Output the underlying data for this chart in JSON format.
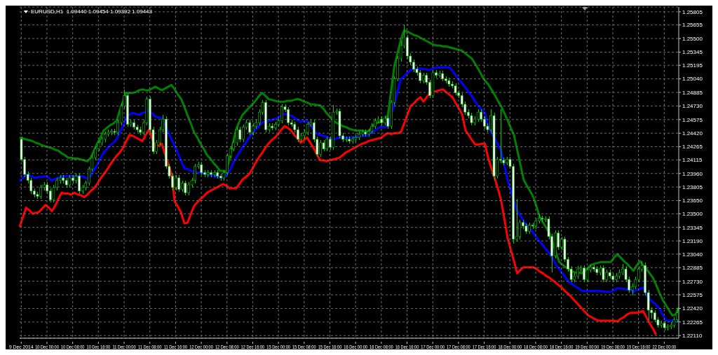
{
  "chart_data": {
    "type": "candlestick",
    "title": "EURUSD,H1  1.09440 1.09454 1.09392 1.09443",
    "color": "#00cc00",
    "categories": [
      "9 Dec 2014",
      null,
      null,
      null,
      null,
      null,
      null,
      null,
      "10 Dec 00:00",
      null,
      null,
      null,
      null,
      null,
      null,
      null,
      "10 Dec 08:00",
      null,
      null,
      null,
      null,
      null,
      null,
      null,
      "10 Dec 16:00",
      null,
      null,
      null,
      null,
      null,
      null,
      null,
      "11 Dec 00:00",
      null,
      null,
      null,
      null,
      null,
      null,
      null,
      "11 Dec 08:00",
      null,
      null,
      null,
      null,
      null,
      null,
      null,
      "11 Dec 16:00",
      null,
      null,
      null,
      null,
      null,
      null,
      null,
      "12 Dec 00:00",
      null,
      null,
      null,
      null,
      null,
      null,
      null,
      "12 Dec 08:00",
      null,
      null,
      null,
      null,
      null,
      null,
      null,
      "12 Dec 16:00",
      null,
      null,
      null,
      null,
      null,
      null,
      null,
      "15 Dec 00:00",
      null,
      null,
      null,
      null,
      null,
      null,
      null,
      "15 Dec 08:00",
      null,
      null,
      null,
      null,
      null,
      null,
      null,
      "15 Dec 16:00",
      null,
      null,
      null,
      null,
      null,
      null,
      null,
      "16 Dec 00:00",
      null,
      null,
      null,
      null,
      null,
      null,
      null,
      "16 Dec 08:00",
      null,
      null,
      null,
      null,
      null,
      null,
      null,
      "16 Dec 16:00",
      null,
      null,
      null,
      null,
      null,
      null,
      null,
      "17 Dec 00:00",
      null,
      null,
      null,
      null,
      null,
      null,
      null,
      "17 Dec 08:00",
      null,
      null,
      null,
      null,
      null,
      null,
      null,
      "17 Dec 16:00",
      null,
      null,
      null,
      null,
      null,
      null,
      null,
      "18 Dec 00:00",
      null,
      null,
      null,
      null,
      null,
      null,
      null,
      "18 Dec 08:00",
      null,
      null,
      null,
      null,
      null,
      null,
      null,
      "18 Dec 16:00",
      null,
      null,
      null,
      null,
      null,
      null,
      null,
      "19 Dec 00:00",
      null,
      null,
      null,
      null,
      null,
      null,
      null,
      "19 Dec 08:00",
      null,
      null,
      null,
      null,
      null,
      null,
      null,
      "19 Dec 16:00",
      null,
      null,
      null,
      null,
      null,
      null,
      null,
      "22 Dec 00:00",
      null,
      null,
      null,
      null
    ],
    "ohlc": [
      [
        1.2435,
        1.2438,
        1.2409,
        1.2412
      ],
      [
        1.2412,
        1.2415,
        1.2392,
        1.2395
      ],
      [
        1.2395,
        1.2398,
        1.2385,
        1.2388
      ],
      [
        1.2388,
        1.2391,
        1.2373,
        1.2376
      ],
      [
        1.2376,
        1.2379,
        1.2369,
        1.2372
      ],
      [
        1.2372,
        1.2375,
        1.2367,
        1.237
      ],
      [
        1.237,
        1.2383,
        1.2367,
        1.238
      ],
      [
        1.238,
        1.2386,
        1.2377,
        1.2383
      ],
      [
        1.2383,
        1.2386,
        1.2373,
        1.2376
      ],
      [
        1.2376,
        1.2379,
        1.2363,
        1.2366
      ],
      [
        1.2366,
        1.2383,
        1.2363,
        1.238
      ],
      [
        1.238,
        1.2391,
        1.2377,
        1.2388
      ],
      [
        1.2388,
        1.2394,
        1.2385,
        1.2391
      ],
      [
        1.2391,
        1.2394,
        1.2385,
        1.2388
      ],
      [
        1.2388,
        1.2391,
        1.238,
        1.2383
      ],
      [
        1.2383,
        1.2394,
        1.238,
        1.2391
      ],
      [
        1.2391,
        1.2394,
        1.2385,
        1.2388
      ],
      [
        1.2388,
        1.2396,
        1.2385,
        1.2393
      ],
      [
        1.2393,
        1.2396,
        1.2373,
        1.2376
      ],
      [
        1.2376,
        1.2383,
        1.2373,
        1.238
      ],
      [
        1.238,
        1.2388,
        1.2377,
        1.2385
      ],
      [
        1.2385,
        1.2404,
        1.2382,
        1.2401
      ],
      [
        1.2401,
        1.2417,
        1.2398,
        1.2414
      ],
      [
        1.2414,
        1.2427,
        1.2411,
        1.2424
      ],
      [
        1.2424,
        1.2434,
        1.2421,
        1.2431
      ],
      [
        1.2431,
        1.2438,
        1.2428,
        1.2435
      ],
      [
        1.2435,
        1.2444,
        1.2432,
        1.2441
      ],
      [
        1.2441,
        1.2446,
        1.2438,
        1.2443
      ],
      [
        1.2443,
        1.2447,
        1.244,
        1.2444
      ],
      [
        1.2444,
        1.2447,
        1.244,
        1.2443
      ],
      [
        1.2443,
        1.2457,
        1.244,
        1.2454
      ],
      [
        1.2454,
        1.2476,
        1.2451,
        1.2473
      ],
      [
        1.2473,
        1.2492,
        1.247,
        1.2485
      ],
      [
        1.2485,
        1.2488,
        1.2449,
        1.2452
      ],
      [
        1.2452,
        1.2457,
        1.2449,
        1.2454
      ],
      [
        1.2454,
        1.2457,
        1.2446,
        1.2449
      ],
      [
        1.2449,
        1.2452,
        1.2443,
        1.2446
      ],
      [
        1.2446,
        1.2449,
        1.244,
        1.2443
      ],
      [
        1.2443,
        1.2457,
        1.244,
        1.2454
      ],
      [
        1.2454,
        1.2484,
        1.2451,
        1.2481
      ],
      [
        1.2481,
        1.2484,
        1.2443,
        1.2446
      ],
      [
        1.2446,
        1.2449,
        1.2418,
        1.2421
      ],
      [
        1.2421,
        1.2434,
        1.2418,
        1.2431
      ],
      [
        1.2431,
        1.2449,
        1.2428,
        1.2446
      ],
      [
        1.2446,
        1.2463,
        1.2443,
        1.2458
      ],
      [
        1.2458,
        1.2461,
        1.2401,
        1.2404
      ],
      [
        1.2404,
        1.2407,
        1.239,
        1.2393
      ],
      [
        1.2393,
        1.2396,
        1.2377,
        1.238
      ],
      [
        1.238,
        1.2394,
        1.2377,
        1.2391
      ],
      [
        1.2391,
        1.2394,
        1.2375,
        1.2378
      ],
      [
        1.2378,
        1.2388,
        1.2375,
        1.2385
      ],
      [
        1.2385,
        1.2388,
        1.2371,
        1.2374
      ],
      [
        1.2374,
        1.2386,
        1.2371,
        1.2383
      ],
      [
        1.2383,
        1.2391,
        1.238,
        1.2388
      ],
      [
        1.2388,
        1.2407,
        1.2385,
        1.2404
      ],
      [
        1.2404,
        1.2409,
        1.2401,
        1.2406
      ],
      [
        1.2406,
        1.2409,
        1.2394,
        1.2397
      ],
      [
        1.2397,
        1.24,
        1.2392,
        1.2395
      ],
      [
        1.2395,
        1.24,
        1.2392,
        1.2397
      ],
      [
        1.2397,
        1.24,
        1.2392,
        1.2395
      ],
      [
        1.2395,
        1.24,
        1.2392,
        1.2397
      ],
      [
        1.2397,
        1.24,
        1.239,
        1.2393
      ],
      [
        1.2393,
        1.2396,
        1.2388,
        1.2391
      ],
      [
        1.2391,
        1.24,
        1.2388,
        1.2397
      ],
      [
        1.2397,
        1.2419,
        1.2394,
        1.2416
      ],
      [
        1.2416,
        1.2427,
        1.2413,
        1.2424
      ],
      [
        1.2424,
        1.2434,
        1.2421,
        1.2431
      ],
      [
        1.2431,
        1.2449,
        1.2428,
        1.2446
      ],
      [
        1.2446,
        1.2449,
        1.2432,
        1.2435
      ],
      [
        1.2435,
        1.2452,
        1.2432,
        1.2449
      ],
      [
        1.2449,
        1.2457,
        1.2446,
        1.2454
      ],
      [
        1.2454,
        1.2457,
        1.244,
        1.2443
      ],
      [
        1.2443,
        1.2453,
        1.244,
        1.245
      ],
      [
        1.245,
        1.2457,
        1.2447,
        1.2454
      ],
      [
        1.2454,
        1.2469,
        1.2451,
        1.2466
      ],
      [
        1.2466,
        1.248,
        1.2463,
        1.2477
      ],
      [
        1.2477,
        1.248,
        1.2443,
        1.2446
      ],
      [
        1.2446,
        1.2453,
        1.2443,
        1.245
      ],
      [
        1.245,
        1.2453,
        1.2445,
        1.2448
      ],
      [
        1.2448,
        1.2455,
        1.2445,
        1.2452
      ],
      [
        1.2452,
        1.2459,
        1.2449,
        1.2456
      ],
      [
        1.2456,
        1.2475,
        1.2453,
        1.2472
      ],
      [
        1.2472,
        1.2475,
        1.2466,
        1.2469
      ],
      [
        1.2469,
        1.2472,
        1.2451,
        1.2454
      ],
      [
        1.2454,
        1.2457,
        1.2449,
        1.2452
      ],
      [
        1.2452,
        1.2455,
        1.2443,
        1.2446
      ],
      [
        1.2446,
        1.2449,
        1.2432,
        1.2435
      ],
      [
        1.2435,
        1.2442,
        1.2432,
        1.2439
      ],
      [
        1.2439,
        1.2446,
        1.2436,
        1.2443
      ],
      [
        1.2443,
        1.2455,
        1.244,
        1.2452
      ],
      [
        1.2452,
        1.2457,
        1.2449,
        1.2454
      ],
      [
        1.2454,
        1.2457,
        1.2432,
        1.2435
      ],
      [
        1.2435,
        1.2438,
        1.2415,
        1.2418
      ],
      [
        1.2418,
        1.2434,
        1.2415,
        1.2431
      ],
      [
        1.2431,
        1.2434,
        1.2421,
        1.2424
      ],
      [
        1.2424,
        1.2438,
        1.2421,
        1.2435
      ],
      [
        1.2435,
        1.2438,
        1.2423,
        1.2426
      ],
      [
        1.2426,
        1.2474,
        1.2423,
        1.2466
      ],
      [
        1.2466,
        1.247,
        1.2463,
        1.2467
      ],
      [
        1.2467,
        1.247,
        1.2436,
        1.2439
      ],
      [
        1.2439,
        1.2442,
        1.2432,
        1.2435
      ],
      [
        1.2435,
        1.2438,
        1.2432,
        1.2435
      ],
      [
        1.2435,
        1.2438,
        1.243,
        1.2433
      ],
      [
        1.2433,
        1.2438,
        1.243,
        1.2435
      ],
      [
        1.2435,
        1.244,
        1.2432,
        1.2437
      ],
      [
        1.2437,
        1.2444,
        1.2434,
        1.2441
      ],
      [
        1.2441,
        1.2446,
        1.2438,
        1.2443
      ],
      [
        1.2443,
        1.2446,
        1.2438,
        1.2441
      ],
      [
        1.2441,
        1.2447,
        1.2438,
        1.2444
      ],
      [
        1.2444,
        1.2453,
        1.2441,
        1.245
      ],
      [
        1.245,
        1.2459,
        1.2447,
        1.2456
      ],
      [
        1.2456,
        1.2461,
        1.2453,
        1.2458
      ],
      [
        1.2458,
        1.2461,
        1.2451,
        1.2454
      ],
      [
        1.2454,
        1.2462,
        1.2451,
        1.2459
      ],
      [
        1.2459,
        1.2462,
        1.2447,
        1.245
      ],
      [
        1.245,
        1.248,
        1.2447,
        1.2477
      ],
      [
        1.2477,
        1.2507,
        1.2474,
        1.2504
      ],
      [
        1.2504,
        1.253,
        1.2501,
        1.2527
      ],
      [
        1.2527,
        1.2548,
        1.2524,
        1.2542
      ],
      [
        1.2542,
        1.2566,
        1.2539,
        1.2551
      ],
      [
        1.2551,
        1.2554,
        1.2527,
        1.253
      ],
      [
        1.253,
        1.2533,
        1.252,
        1.2523
      ],
      [
        1.2523,
        1.2526,
        1.2512,
        1.2515
      ],
      [
        1.2515,
        1.2518,
        1.2508,
        1.2511
      ],
      [
        1.2511,
        1.2514,
        1.2499,
        1.2502
      ],
      [
        1.2502,
        1.2511,
        1.2499,
        1.2508
      ],
      [
        1.2508,
        1.2511,
        1.2497,
        1.25
      ],
      [
        1.25,
        1.2503,
        1.2482,
        1.2485
      ],
      [
        1.2485,
        1.2514,
        1.2482,
        1.2511
      ],
      [
        1.2511,
        1.2514,
        1.2505,
        1.2508
      ],
      [
        1.2508,
        1.2513,
        1.2505,
        1.251
      ],
      [
        1.251,
        1.2513,
        1.2501,
        1.2504
      ],
      [
        1.2504,
        1.2507,
        1.2499,
        1.2502
      ],
      [
        1.2502,
        1.2505,
        1.2495,
        1.2498
      ],
      [
        1.2498,
        1.2501,
        1.2493,
        1.2496
      ],
      [
        1.2496,
        1.2499,
        1.2485,
        1.2488
      ],
      [
        1.2488,
        1.2491,
        1.2482,
        1.2485
      ],
      [
        1.2485,
        1.2488,
        1.2472,
        1.2475
      ],
      [
        1.2475,
        1.2478,
        1.2463,
        1.2466
      ],
      [
        1.2466,
        1.2469,
        1.2459,
        1.2462
      ],
      [
        1.2462,
        1.2465,
        1.2451,
        1.2454
      ],
      [
        1.2454,
        1.2461,
        1.2451,
        1.2458
      ],
      [
        1.2458,
        1.2469,
        1.2455,
        1.2466
      ],
      [
        1.2466,
        1.2469,
        1.2455,
        1.2458
      ],
      [
        1.2458,
        1.2461,
        1.2447,
        1.245
      ],
      [
        1.245,
        1.2453,
        1.2443,
        1.2446
      ],
      [
        1.2446,
        1.2469,
        1.2443,
        1.2462
      ],
      [
        1.2462,
        1.2465,
        1.2388,
        1.2393
      ],
      [
        1.2393,
        1.2415,
        1.239,
        1.2412
      ],
      [
        1.2412,
        1.2469,
        1.2408,
        1.2411
      ],
      [
        1.2411,
        1.2414,
        1.2405,
        1.2408
      ],
      [
        1.2408,
        1.2415,
        1.2405,
        1.2412
      ],
      [
        1.2412,
        1.2415,
        1.2401,
        1.2404
      ],
      [
        1.2404,
        1.2407,
        1.2316,
        1.2321
      ],
      [
        1.2321,
        1.2367,
        1.2318,
        1.2324
      ],
      [
        1.2324,
        1.2343,
        1.2321,
        1.234
      ],
      [
        1.234,
        1.2343,
        1.2333,
        1.2336
      ],
      [
        1.2336,
        1.2339,
        1.2327,
        1.233
      ],
      [
        1.233,
        1.234,
        1.2327,
        1.2337
      ],
      [
        1.2337,
        1.234,
        1.2333,
        1.2336
      ],
      [
        1.2336,
        1.2345,
        1.2333,
        1.2342
      ],
      [
        1.2342,
        1.235,
        1.2339,
        1.2345
      ],
      [
        1.2345,
        1.2348,
        1.2341,
        1.2344
      ],
      [
        1.2344,
        1.2347,
        1.2341,
        1.2344
      ],
      [
        1.2344,
        1.2347,
        1.2321,
        1.2324
      ],
      [
        1.2324,
        1.2327,
        1.2283,
        1.2302
      ],
      [
        1.2302,
        1.2331,
        1.2299,
        1.2328
      ],
      [
        1.2328,
        1.2331,
        1.2309,
        1.2312
      ],
      [
        1.2312,
        1.2324,
        1.2309,
        1.2321
      ],
      [
        1.2321,
        1.2324,
        1.2295,
        1.2298
      ],
      [
        1.2298,
        1.2301,
        1.2284,
        1.2287
      ],
      [
        1.2287,
        1.229,
        1.2272,
        1.2275
      ],
      [
        1.2275,
        1.2282,
        1.2272,
        1.2279
      ],
      [
        1.2279,
        1.229,
        1.2276,
        1.2287
      ],
      [
        1.2287,
        1.2291,
        1.2284,
        1.2288
      ],
      [
        1.2288,
        1.2291,
        1.2272,
        1.2275
      ],
      [
        1.2275,
        1.2289,
        1.2272,
        1.2286
      ],
      [
        1.2286,
        1.2292,
        1.2283,
        1.2289
      ],
      [
        1.2289,
        1.2292,
        1.2284,
        1.2287
      ],
      [
        1.2287,
        1.229,
        1.228,
        1.2283
      ],
      [
        1.2283,
        1.2291,
        1.228,
        1.2288
      ],
      [
        1.2288,
        1.2291,
        1.2272,
        1.2275
      ],
      [
        1.2275,
        1.2286,
        1.2272,
        1.2283
      ],
      [
        1.2283,
        1.2286,
        1.2276,
        1.2279
      ],
      [
        1.2279,
        1.2282,
        1.2272,
        1.2275
      ],
      [
        1.2275,
        1.2282,
        1.2272,
        1.2279
      ],
      [
        1.2279,
        1.2286,
        1.2276,
        1.2283
      ],
      [
        1.2283,
        1.2293,
        1.228,
        1.2287
      ],
      [
        1.2287,
        1.229,
        1.2272,
        1.2275
      ],
      [
        1.2275,
        1.2278,
        1.226,
        1.2263
      ],
      [
        1.2263,
        1.227,
        1.2257,
        1.2267
      ],
      [
        1.2267,
        1.2278,
        1.2264,
        1.2275
      ],
      [
        1.2275,
        1.229,
        1.2272,
        1.2287
      ],
      [
        1.2287,
        1.2296,
        1.2284,
        1.2291
      ],
      [
        1.2291,
        1.2294,
        1.2257,
        1.226
      ],
      [
        1.226,
        1.2263,
        1.2228,
        1.224
      ],
      [
        1.224,
        1.2243,
        1.223,
        1.2237
      ],
      [
        1.2237,
        1.224,
        1.2226,
        1.2229
      ],
      [
        1.2229,
        1.2232,
        1.222,
        1.2223
      ],
      [
        1.2223,
        1.2228,
        1.222,
        1.2225
      ],
      [
        1.2225,
        1.2228,
        1.2217,
        1.222
      ],
      [
        1.222,
        1.2224,
        1.2217,
        1.2221
      ],
      [
        1.2221,
        1.2226,
        1.2218,
        1.2223
      ],
      [
        1.2223,
        1.2232,
        1.222,
        1.2229
      ],
      [
        1.2229,
        1.2242,
        1.2226,
        1.2237
      ]
    ],
    "series": [
      {
        "type": "line",
        "color": "#008000",
        "values": [
          1.2437,
          1.2436,
          1.2435,
          1.2434,
          1.2433,
          1.2431,
          1.243,
          1.2428,
          1.2427,
          1.2426,
          1.2425,
          1.2423,
          1.2422,
          1.2419,
          1.2417,
          1.2414,
          1.2414,
          1.2413,
          1.2413,
          1.2412,
          1.2411,
          1.241,
          1.2414,
          1.2422,
          1.243,
          1.2437,
          1.2445,
          1.2448,
          1.2451,
          1.2453,
          1.2456,
          1.2468,
          1.2478,
          1.2488,
          1.2488,
          1.2488,
          1.2489,
          1.2491,
          1.2492,
          1.2491,
          1.2491,
          1.2493,
          1.2495,
          1.2493,
          1.2491,
          1.2493,
          1.2495,
          1.2497,
          1.2492,
          1.2486,
          1.2481,
          1.2472,
          1.2462,
          1.2453,
          1.2443,
          1.2437,
          1.243,
          1.2424,
          1.2417,
          1.2413,
          1.2408,
          1.2404,
          1.2399,
          1.2399,
          1.2398,
          1.2414,
          1.243,
          1.2446,
          1.2455,
          1.2463,
          1.2467,
          1.2471,
          1.2475,
          1.2479,
          1.2484,
          1.2488,
          1.2485,
          1.2481,
          1.248,
          1.2479,
          1.2478,
          1.2478,
          1.2478,
          1.2479,
          1.2479,
          1.248,
          1.2481,
          1.248,
          1.2478,
          1.2477,
          1.2475,
          1.2475,
          1.2474,
          1.2474,
          1.247,
          1.2465,
          1.2461,
          1.2456,
          1.2454,
          1.2452,
          1.245,
          1.2449,
          1.2447,
          1.2446,
          1.2445,
          1.2445,
          1.2445,
          1.2444,
          1.2444,
          1.2449,
          1.2453,
          1.2454,
          1.2455,
          1.2456,
          1.2463,
          1.2491,
          1.2519,
          1.2534,
          1.2549,
          1.2559,
          1.2558,
          1.2556,
          1.2554,
          1.2553,
          1.2551,
          1.2549,
          1.2547,
          1.2545,
          1.2543,
          1.2542,
          1.2542,
          1.2541,
          1.2541,
          1.254,
          1.2539,
          1.2538,
          1.2537,
          1.2536,
          1.2533,
          1.253,
          1.2527,
          1.2521,
          1.2515,
          1.2508,
          1.2502,
          1.2498,
          1.2492,
          1.2486,
          1.2479,
          1.2473,
          1.2465,
          1.2457,
          1.2448,
          1.244,
          1.2423,
          1.2406,
          1.2389,
          1.2382,
          1.2376,
          1.2369,
          1.2358,
          1.2346,
          1.234,
          1.2334,
          1.2328,
          1.2317,
          1.2306,
          1.2295,
          1.2292,
          1.2289,
          1.2287,
          1.2284,
          1.2283,
          1.2283,
          1.2282,
          1.2285,
          1.2289,
          1.2292,
          1.2293,
          1.2294,
          1.2295,
          1.2295,
          1.2295,
          1.2295,
          1.23,
          1.2304,
          1.23,
          1.2296,
          1.2293,
          1.2289,
          1.2285,
          1.2291,
          1.2296,
          1.2291,
          1.2287,
          1.2282,
          1.2277,
          1.2269,
          1.226,
          1.2252,
          1.2246,
          1.224,
          1.2234,
          1.2235,
          1.2243
        ]
      },
      {
        "type": "line",
        "color": "#0000ff",
        "values": [
          1.2387,
          1.2391,
          1.2395,
          1.2394,
          1.2392,
          1.2391,
          1.2392,
          1.2392,
          1.2393,
          1.2391,
          1.2388,
          1.239,
          1.2391,
          1.2393,
          1.2393,
          1.2393,
          1.2393,
          1.2393,
          1.2393,
          1.2393,
          1.2392,
          1.239,
          1.2393,
          1.24,
          1.2406,
          1.2413,
          1.242,
          1.2424,
          1.2428,
          1.2431,
          1.2435,
          1.2443,
          1.245,
          1.246,
          1.2463,
          1.2465,
          1.2464,
          1.2463,
          1.2465,
          1.2466,
          1.2468,
          1.2465,
          1.2461,
          1.246,
          1.2459,
          1.2451,
          1.2443,
          1.2435,
          1.2427,
          1.2419,
          1.241,
          1.2402,
          1.2401,
          1.2399,
          1.2398,
          1.2397,
          1.2397,
          1.2396,
          1.2395,
          1.2394,
          1.2393,
          1.2392,
          1.2392,
          1.2391,
          1.2395,
          1.2399,
          1.2407,
          1.2414,
          1.242,
          1.2426,
          1.2431,
          1.2437,
          1.2441,
          1.2446,
          1.245,
          1.2454,
          1.2455,
          1.2456,
          1.2457,
          1.2458,
          1.246,
          1.2462,
          1.2464,
          1.2463,
          1.2462,
          1.246,
          1.2457,
          1.2455,
          1.2456,
          1.2456,
          1.2451,
          1.2446,
          1.2441,
          1.244,
          1.2439,
          1.2438,
          1.2436,
          1.2435,
          1.2436,
          1.2437,
          1.2437,
          1.2437,
          1.2437,
          1.2437,
          1.2438,
          1.2438,
          1.2439,
          1.2439,
          1.244,
          1.2443,
          1.2445,
          1.2448,
          1.2449,
          1.2449,
          1.245,
          1.2463,
          1.2475,
          1.249,
          1.2504,
          1.2507,
          1.2511,
          1.2514,
          1.2515,
          1.2515,
          1.2516,
          1.2515,
          1.2515,
          1.2514,
          1.2516,
          1.2517,
          1.2517,
          1.2517,
          1.2517,
          1.2517,
          1.2513,
          1.2508,
          1.2503,
          1.2499,
          1.2494,
          1.2489,
          1.2484,
          1.2478,
          1.2473,
          1.2469,
          1.2465,
          1.245,
          1.2443,
          1.2436,
          1.2429,
          1.2422,
          1.2406,
          1.2389,
          1.2377,
          1.2365,
          1.2353,
          1.2348,
          1.2342,
          1.2337,
          1.2333,
          1.2328,
          1.2323,
          1.2318,
          1.2314,
          1.2309,
          1.2305,
          1.2299,
          1.2292,
          1.2287,
          1.2282,
          1.2277,
          1.2272,
          1.227,
          1.2267,
          1.2265,
          1.2262,
          1.2262,
          1.2262,
          1.2262,
          1.2262,
          1.2262,
          1.2262,
          1.2261,
          1.2261,
          1.2261,
          1.2263,
          1.2265,
          1.2265,
          1.2264,
          1.2264,
          1.2263,
          1.2261,
          1.2263,
          1.2264,
          1.2266,
          1.2257,
          1.2253,
          1.2249,
          1.2246,
          1.2242,
          1.2235,
          1.2228,
          1.2228,
          1.2228,
          1.2227,
          1.2227
        ]
      },
      {
        "type": "line",
        "color": "#ff0000",
        "values": [
          1.2335,
          1.2346,
          1.2357,
          1.2354,
          1.235,
          1.2351,
          1.2352,
          1.2356,
          1.236,
          1.2357,
          1.2353,
          1.2359,
          1.2367,
          1.2374,
          1.2373,
          1.2373,
          1.2372,
          1.2374,
          1.2372,
          1.2371,
          1.2369,
          1.2372,
          1.2376,
          1.2379,
          1.2384,
          1.239,
          1.2395,
          1.24,
          1.2406,
          1.2411,
          1.2416,
          1.242,
          1.2425,
          1.2433,
          1.244,
          1.2439,
          1.2437,
          1.2435,
          1.2433,
          1.244,
          1.2446,
          1.2436,
          1.2426,
          1.2428,
          1.243,
          1.2418,
          1.2407,
          1.2395,
          1.2364,
          1.2358,
          1.2351,
          1.2339,
          1.234,
          1.235,
          1.2359,
          1.2363,
          1.2367,
          1.237,
          1.2374,
          1.2376,
          1.2378,
          1.238,
          1.2382,
          1.2384,
          1.2382,
          1.2379,
          1.2379,
          1.2379,
          1.2384,
          1.2389,
          1.2392,
          1.2395,
          1.2401,
          1.2408,
          1.2414,
          1.2419,
          1.2425,
          1.243,
          1.2434,
          1.2437,
          1.2441,
          1.2446,
          1.245,
          1.2448,
          1.2445,
          1.244,
          1.2436,
          1.2431,
          1.2434,
          1.2437,
          1.2431,
          1.2425,
          1.2418,
          1.2411,
          1.2411,
          1.241,
          1.2411,
          1.2412,
          1.2413,
          1.2414,
          1.2417,
          1.242,
          1.2422,
          1.2424,
          1.2426,
          1.2428,
          1.243,
          1.2431,
          1.2433,
          1.2434,
          1.2435,
          1.2436,
          1.2437,
          1.244,
          1.2442,
          1.2441,
          1.2442,
          1.2442,
          1.2443,
          1.2453,
          1.2463,
          1.2473,
          1.2476,
          1.248,
          1.2483,
          1.2478,
          1.2483,
          1.2488,
          1.2489,
          1.249,
          1.2491,
          1.2492,
          1.2489,
          1.2486,
          1.2483,
          1.2476,
          1.247,
          1.2463,
          1.2445,
          1.244,
          1.2434,
          1.2429,
          1.2429,
          1.243,
          1.243,
          1.2414,
          1.2402,
          1.2391,
          1.2379,
          1.2366,
          1.2345,
          1.2323,
          1.2309,
          1.2296,
          1.2282,
          1.2286,
          1.2289,
          1.2289,
          1.2289,
          1.2289,
          1.2287,
          1.2284,
          1.2282,
          1.2279,
          1.2277,
          1.2274,
          1.2271,
          1.2268,
          1.2265,
          1.2261,
          1.2258,
          1.2254,
          1.225,
          1.2246,
          1.2242,
          1.2238,
          1.2234,
          1.2232,
          1.223,
          1.2228,
          1.2228,
          1.2228,
          1.2228,
          1.2228,
          1.2228,
          1.2227,
          1.223,
          1.2232,
          1.2235,
          1.2237,
          1.2237,
          1.2237,
          1.2238,
          1.2239,
          1.2232,
          1.2225,
          1.2219,
          1.2212,
          null,
          null,
          null,
          null,
          null,
          null,
          null
        ]
      }
    ],
    "ylim": [
      1.2208,
      1.2586
    ],
    "yticks": [
      {
        "value": 1.2211,
        "label": "1.22110"
      },
      1.22265,
      {
        "value": 1.2242,
        "label": "1.22420"
      },
      1.22575,
      {
        "value": 1.2273,
        "label": "1.22730"
      },
      1.22885,
      {
        "value": 1.2304,
        "label": "1.23040"
      },
      {
        "value": 1.2319,
        "label": "1.23190"
      },
      1.23345,
      {
        "value": 1.235,
        "label": "1.23500"
      },
      {
        "value": 1.2365,
        "label": "1.23650"
      },
      1.23805,
      {
        "value": 1.2396,
        "label": "1.23960"
      },
      1.24115,
      1.24265,
      {
        "value": 1.2442,
        "label": "1.24420"
      },
      1.24575,
      {
        "value": 1.2473,
        "label": "1.24730"
      },
      1.24885,
      {
        "value": 1.2504,
        "label": "1.25040"
      },
      1.25195,
      1.25345,
      {
        "value": 1.255,
        "label": "1.25500"
      },
      1.25655,
      1.25805
    ],
    "grid": true
  }
}
